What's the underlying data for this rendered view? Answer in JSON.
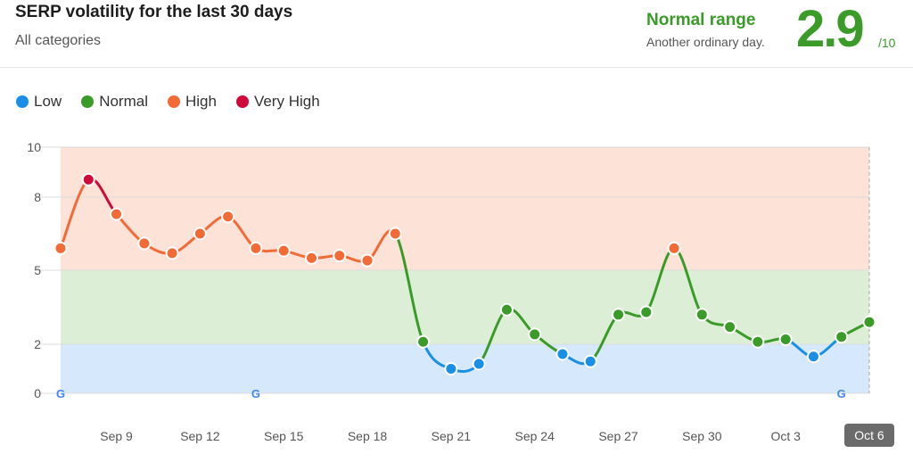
{
  "header": {
    "title": "SERP volatility for the last 30 days",
    "subtitle": "All categories",
    "range_label": "Normal range",
    "range_description": "Another ordinary day.",
    "score": "2.9",
    "score_max": "/10"
  },
  "legend": [
    {
      "label": "Low",
      "color": "#1a8fe6"
    },
    {
      "label": "Normal",
      "color": "#3a9b29"
    },
    {
      "label": "High",
      "color": "#f26b36"
    },
    {
      "label": "Very High",
      "color": "#cf0a3a"
    }
  ],
  "chart_data": {
    "type": "line",
    "title": "SERP volatility for the last 30 days",
    "ylim": [
      0,
      10
    ],
    "y_ticks": [
      "0",
      "2",
      "5",
      "8",
      "10"
    ],
    "x_tick_labels": [
      "Sep 9",
      "Sep 12",
      "Sep 15",
      "Sep 18",
      "Sep 21",
      "Sep 24",
      "Sep 27",
      "Sep 30",
      "Oct 3",
      "Oct 6"
    ],
    "highlighted_x_label": "Oct 6",
    "bands": [
      {
        "name": "Low",
        "from": 0,
        "to": 2,
        "color": "#d6e8fb"
      },
      {
        "name": "Normal",
        "from": 2,
        "to": 5,
        "color": "#dcefd6"
      },
      {
        "name": "High",
        "from": 5,
        "to": 10,
        "color": "#fde2d8"
      }
    ],
    "x": [
      "Sep 7",
      "Sep 8",
      "Sep 9",
      "Sep 10",
      "Sep 11",
      "Sep 12",
      "Sep 13",
      "Sep 14",
      "Sep 15",
      "Sep 16",
      "Sep 17",
      "Sep 18",
      "Sep 19",
      "Sep 20",
      "Sep 21",
      "Sep 22",
      "Sep 23",
      "Sep 24",
      "Sep 25",
      "Sep 26",
      "Sep 27",
      "Sep 28",
      "Sep 29",
      "Sep 30",
      "Oct 1",
      "Oct 2",
      "Oct 3",
      "Oct 4",
      "Oct 5",
      "Oct 6"
    ],
    "series": [
      {
        "values": [
          5.9,
          8.7,
          7.3,
          6.1,
          5.7,
          6.5,
          7.2,
          5.9,
          5.8,
          5.5,
          5.6,
          5.4,
          6.5,
          2.1,
          1.0,
          1.2,
          3.4,
          2.4,
          1.6,
          1.3,
          3.2,
          3.3,
          5.9,
          3.2,
          2.7,
          2.1,
          2.2,
          1.5,
          2.3,
          2.9
        ]
      }
    ],
    "google_update_markers": [
      "Sep 7",
      "Sep 14",
      "Oct 5"
    ]
  }
}
